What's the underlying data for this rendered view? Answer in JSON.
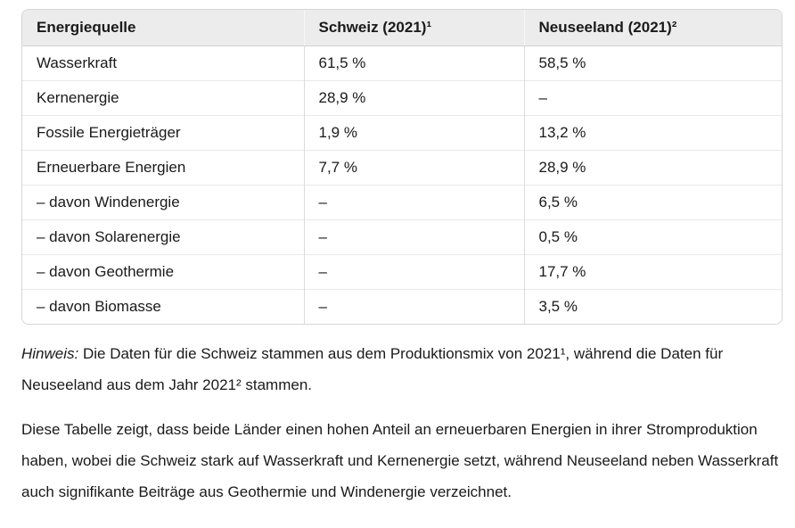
{
  "table": {
    "columns": [
      "Energiequelle",
      "Schweiz (2021)¹",
      "Neuseeland (2021)²"
    ],
    "rows": [
      [
        "Wasserkraft",
        "61,5 %",
        "58,5 %"
      ],
      [
        "Kernenergie",
        "28,9 %",
        "–"
      ],
      [
        "Fossile Energieträger",
        "1,9 %",
        "13,2 %"
      ],
      [
        "Erneuerbare Energien",
        "7,7 %",
        "28,9 %"
      ],
      [
        "– davon Windenergie",
        "–",
        "6,5 %"
      ],
      [
        "– davon Solarenergie",
        "–",
        "0,5 %"
      ],
      [
        "– davon Geothermie",
        "–",
        "17,7 %"
      ],
      [
        "– davon Biomasse",
        "–",
        "3,5 %"
      ]
    ]
  },
  "notes": {
    "hinweis_label": "Hinweis:",
    "hinweis_text": " Die Daten für die Schweiz stammen aus dem Produktionsmix von 2021¹, während die Daten für Neuseeland aus dem Jahr 2021² stammen.",
    "summary": "Diese Tabelle zeigt, dass beide Länder einen hohen Anteil an erneuerbaren Energien in ihrer Stromproduktion haben, wobei die Schweiz stark auf Wasserkraft und Kernenergie setzt, während Neuseeland neben Wasserkraft auch signifikante Beiträge aus Geothermie und Windenergie verzeichnet."
  },
  "colors": {
    "header_background": "#ececec",
    "outer_border": "#d6d6d6",
    "row_divider": "#e9e9e9",
    "column_divider": "#dcdcdc",
    "text": "#1a1a1a"
  }
}
